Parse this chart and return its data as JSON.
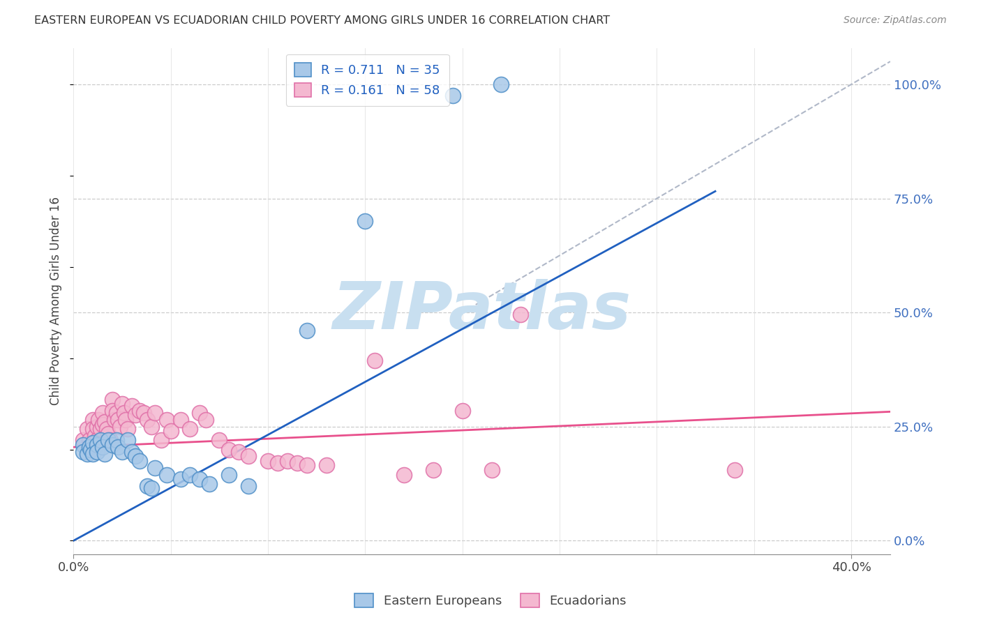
{
  "title": "EASTERN EUROPEAN VS ECUADORIAN CHILD POVERTY AMONG GIRLS UNDER 16 CORRELATION CHART",
  "source": "Source: ZipAtlas.com",
  "ylabel": "Child Poverty Among Girls Under 16",
  "right_yticks": [
    0.0,
    0.25,
    0.5,
    0.75,
    1.0
  ],
  "right_yticklabels": [
    "0.0%",
    "25.0%",
    "50.0%",
    "75.0%",
    "100.0%"
  ],
  "watermark": "ZIPatlas",
  "legend_blue_label": "R = 0.711   N = 35",
  "legend_pink_label": "R = 0.161   N = 58",
  "legend_bottom_blue": "Eastern Europeans",
  "legend_bottom_pink": "Ecuadorians",
  "blue_color": "#a8c8e8",
  "pink_color": "#f4b8d0",
  "blue_line_color": "#2060c0",
  "pink_line_color": "#e8508c",
  "blue_scatter": [
    [
      0.005,
      0.21
    ],
    [
      0.005,
      0.195
    ],
    [
      0.007,
      0.19
    ],
    [
      0.008,
      0.205
    ],
    [
      0.009,
      0.2
    ],
    [
      0.01,
      0.215
    ],
    [
      0.01,
      0.19
    ],
    [
      0.012,
      0.21
    ],
    [
      0.012,
      0.195
    ],
    [
      0.014,
      0.22
    ],
    [
      0.015,
      0.205
    ],
    [
      0.016,
      0.19
    ],
    [
      0.018,
      0.22
    ],
    [
      0.02,
      0.21
    ],
    [
      0.022,
      0.22
    ],
    [
      0.023,
      0.205
    ],
    [
      0.025,
      0.195
    ],
    [
      0.028,
      0.22
    ],
    [
      0.03,
      0.195
    ],
    [
      0.032,
      0.185
    ],
    [
      0.034,
      0.175
    ],
    [
      0.038,
      0.12
    ],
    [
      0.04,
      0.115
    ],
    [
      0.042,
      0.16
    ],
    [
      0.048,
      0.145
    ],
    [
      0.055,
      0.135
    ],
    [
      0.06,
      0.145
    ],
    [
      0.065,
      0.135
    ],
    [
      0.07,
      0.125
    ],
    [
      0.08,
      0.145
    ],
    [
      0.09,
      0.12
    ],
    [
      0.12,
      0.46
    ],
    [
      0.15,
      0.7
    ],
    [
      0.195,
      0.975
    ],
    [
      0.22,
      1.0
    ]
  ],
  "pink_scatter": [
    [
      0.005,
      0.22
    ],
    [
      0.007,
      0.245
    ],
    [
      0.008,
      0.22
    ],
    [
      0.009,
      0.2
    ],
    [
      0.01,
      0.265
    ],
    [
      0.01,
      0.245
    ],
    [
      0.011,
      0.23
    ],
    [
      0.012,
      0.25
    ],
    [
      0.012,
      0.22
    ],
    [
      0.013,
      0.265
    ],
    [
      0.014,
      0.245
    ],
    [
      0.015,
      0.28
    ],
    [
      0.015,
      0.255
    ],
    [
      0.016,
      0.26
    ],
    [
      0.017,
      0.245
    ],
    [
      0.018,
      0.235
    ],
    [
      0.019,
      0.22
    ],
    [
      0.02,
      0.31
    ],
    [
      0.02,
      0.285
    ],
    [
      0.021,
      0.265
    ],
    [
      0.022,
      0.28
    ],
    [
      0.023,
      0.265
    ],
    [
      0.024,
      0.25
    ],
    [
      0.025,
      0.3
    ],
    [
      0.026,
      0.28
    ],
    [
      0.027,
      0.265
    ],
    [
      0.028,
      0.245
    ],
    [
      0.03,
      0.295
    ],
    [
      0.032,
      0.275
    ],
    [
      0.034,
      0.285
    ],
    [
      0.036,
      0.28
    ],
    [
      0.038,
      0.265
    ],
    [
      0.04,
      0.25
    ],
    [
      0.042,
      0.28
    ],
    [
      0.045,
      0.22
    ],
    [
      0.048,
      0.265
    ],
    [
      0.05,
      0.24
    ],
    [
      0.055,
      0.265
    ],
    [
      0.06,
      0.245
    ],
    [
      0.065,
      0.28
    ],
    [
      0.068,
      0.265
    ],
    [
      0.075,
      0.22
    ],
    [
      0.08,
      0.2
    ],
    [
      0.085,
      0.195
    ],
    [
      0.09,
      0.185
    ],
    [
      0.1,
      0.175
    ],
    [
      0.105,
      0.17
    ],
    [
      0.11,
      0.175
    ],
    [
      0.115,
      0.17
    ],
    [
      0.12,
      0.165
    ],
    [
      0.13,
      0.165
    ],
    [
      0.155,
      0.395
    ],
    [
      0.17,
      0.145
    ],
    [
      0.185,
      0.155
    ],
    [
      0.2,
      0.285
    ],
    [
      0.215,
      0.155
    ],
    [
      0.23,
      0.495
    ],
    [
      0.34,
      0.155
    ]
  ],
  "blue_line_x": [
    0.0,
    0.33
  ],
  "blue_line_y_intercept": 0.0,
  "blue_line_slope": 2.32,
  "pink_line_x": [
    0.0,
    0.42
  ],
  "pink_line_y_intercept": 0.205,
  "pink_line_slope": 0.185,
  "diag_line_x": [
    0.2,
    0.42
  ],
  "diag_line_y": [
    0.5,
    1.05
  ],
  "xlim": [
    0.0,
    0.42
  ],
  "ylim": [
    -0.03,
    1.08
  ],
  "grid_color": "#cccccc",
  "background_color": "#ffffff",
  "watermark_color": "#c8dff0",
  "watermark_fontsize": 68
}
